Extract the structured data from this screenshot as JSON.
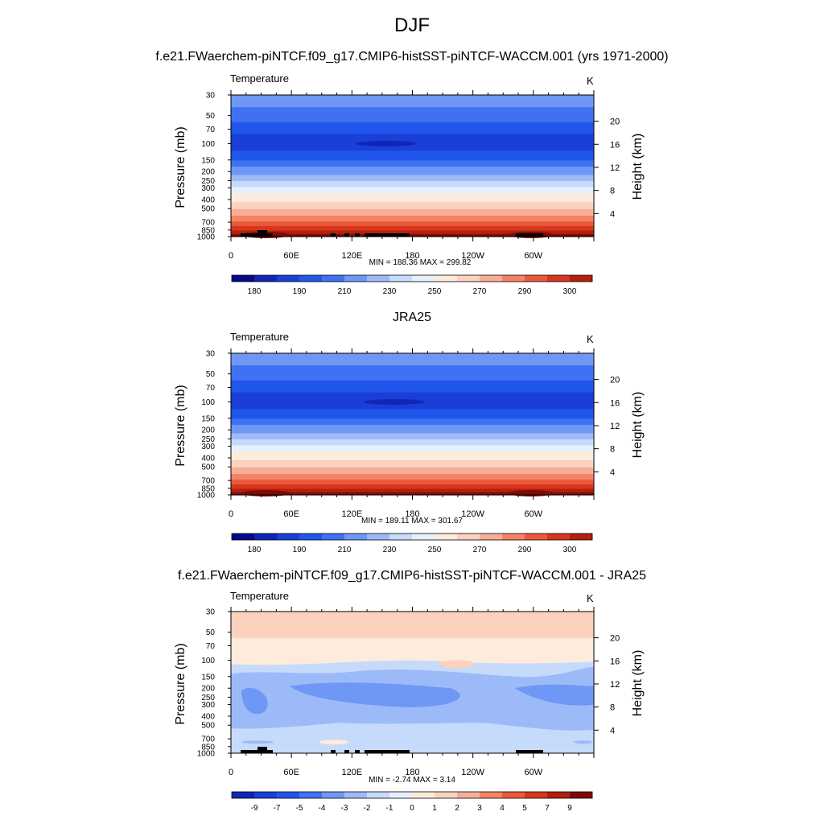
{
  "figure": {
    "title": "DJF"
  },
  "panels": [
    {
      "heading": "f.e21.FWaerchem-piNTCF.f09_g17.CMIP6-histSST-piNTCF-WACCM.001 (yrs 1971-2000)",
      "var_label": "Temperature",
      "units": "K",
      "minmax": "MIN = 188.36  MAX = 299.82",
      "kind": "absolute",
      "topography": true,
      "colorbar_labels": [
        "180",
        "190",
        "210",
        "230",
        "250",
        "270",
        "290",
        "300"
      ]
    },
    {
      "heading": "JRA25",
      "var_label": "Temperature",
      "units": "K",
      "minmax": "MIN = 189.11  MAX = 301.67",
      "kind": "absolute",
      "topography": false,
      "colorbar_labels": [
        "180",
        "190",
        "210",
        "230",
        "250",
        "270",
        "290",
        "300"
      ]
    },
    {
      "heading": "f.e21.FWaerchem-piNTCF.f09_g17.CMIP6-histSST-piNTCF-WACCM.001 - JRA25",
      "var_label": "Temperature",
      "units": "K",
      "minmax": "MIN =  -2.74  MAX =   3.14",
      "kind": "difference",
      "topography": true,
      "colorbar_labels": [
        "-9",
        "-7",
        "-5",
        "-4",
        "-3",
        "-2",
        "-1",
        "0",
        "1",
        "2",
        "3",
        "4",
        "5",
        "7",
        "9"
      ]
    }
  ],
  "axes": {
    "ylabel_left": "Pressure (mb)",
    "ylabel_right": "Height (km)",
    "pressure_ticks": [
      "30",
      "50",
      "70",
      "100",
      "150",
      "200",
      "250",
      "300",
      "400",
      "500",
      "700",
      "850",
      "1000"
    ],
    "height_ticks": [
      "20",
      "16",
      "12",
      "8",
      "4"
    ],
    "lon_ticks": [
      "0",
      "60E",
      "120E",
      "180",
      "120W",
      "60W"
    ]
  },
  "chart_data": [
    {
      "type": "heatmap",
      "title": "f.e21.FWaerchem-piNTCF.f09_g17.CMIP6-histSST-piNTCF-WACCM.001 (yrs 1971-2000)",
      "xlabel": "",
      "ylabel": "Pressure (mb)",
      "y2label": "Height (km)",
      "x_ticks": [
        "0",
        "60E",
        "120E",
        "180",
        "120W",
        "60W"
      ],
      "y_ticks": [
        30,
        50,
        70,
        100,
        150,
        200,
        250,
        300,
        400,
        500,
        700,
        850,
        1000
      ],
      "y_scale": "log",
      "ylim": [
        1000,
        30
      ],
      "contour_levels": [
        180,
        185,
        190,
        200,
        210,
        220,
        230,
        240,
        250,
        260,
        270,
        280,
        290,
        295,
        300
      ],
      "min": 188.36,
      "max": 299.82,
      "units": "K"
    },
    {
      "type": "heatmap",
      "title": "JRA25",
      "xlabel": "",
      "ylabel": "Pressure (mb)",
      "y2label": "Height (km)",
      "x_ticks": [
        "0",
        "60E",
        "120E",
        "180",
        "120W",
        "60W"
      ],
      "y_ticks": [
        30,
        50,
        70,
        100,
        150,
        200,
        250,
        300,
        400,
        500,
        700,
        850,
        1000
      ],
      "y_scale": "log",
      "ylim": [
        1000,
        30
      ],
      "contour_levels": [
        180,
        185,
        190,
        200,
        210,
        220,
        230,
        240,
        250,
        260,
        270,
        280,
        290,
        295,
        300
      ],
      "min": 189.11,
      "max": 301.67,
      "units": "K"
    },
    {
      "type": "heatmap",
      "title": "f.e21.FWaerchem-piNTCF.f09_g17.CMIP6-histSST-piNTCF-WACCM.001 - JRA25",
      "xlabel": "",
      "ylabel": "Pressure (mb)",
      "y2label": "Height (km)",
      "x_ticks": [
        "0",
        "60E",
        "120E",
        "180",
        "120W",
        "60W"
      ],
      "y_ticks": [
        30,
        50,
        70,
        100,
        150,
        200,
        250,
        300,
        400,
        500,
        700,
        850,
        1000
      ],
      "y_scale": "log",
      "ylim": [
        1000,
        30
      ],
      "contour_levels": [
        -9,
        -7,
        -5,
        -4,
        -3,
        -2,
        -1,
        0,
        1,
        2,
        3,
        4,
        5,
        7,
        9
      ],
      "min": -2.74,
      "max": 3.14,
      "units": "K"
    }
  ],
  "colors": {
    "palette": [
      "#08088a",
      "#1126b4",
      "#1a3fd8",
      "#2156ec",
      "#3f72f2",
      "#6f97f5",
      "#9dbaf8",
      "#c6dbfb",
      "#e6f0fe",
      "#fdebdb",
      "#fbd2be",
      "#f6ae96",
      "#f28366",
      "#ea5a39",
      "#d8371d",
      "#b2200e",
      "#7e0a05"
    ],
    "topography": "#000000"
  }
}
